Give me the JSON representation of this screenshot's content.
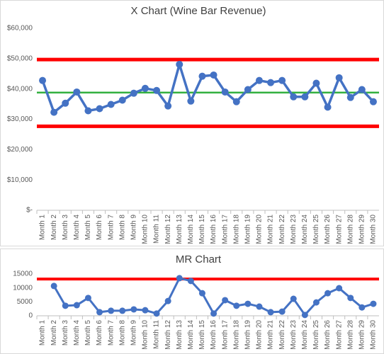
{
  "chart_data": [
    {
      "type": "line",
      "title": "X Chart (Wine Bar Revenue)",
      "categories": [
        "Month 1",
        "Month 2",
        "Month 3",
        "Month 4",
        "Month 5",
        "Month 6",
        "Month 7",
        "Month 8",
        "Month 9",
        "Month 10",
        "Month 11",
        "Month 12",
        "Month 13",
        "Month 14",
        "Month 15",
        "Month 16",
        "Month 17",
        "Month 18",
        "Month 19",
        "Month 20",
        "Month 21",
        "Month 22",
        "Month 23",
        "Month 24",
        "Month 25",
        "Month 26",
        "Month 27",
        "Month 28",
        "Month 29",
        "Month 30"
      ],
      "series": [
        {
          "color": "#4472c4",
          "values": [
            42800,
            32300,
            35300,
            39000,
            32800,
            33500,
            34900,
            36300,
            38600,
            40200,
            39500,
            34400,
            48100,
            36000,
            44200,
            44600,
            39000,
            35800,
            39800,
            42800,
            42100,
            42800,
            37400,
            37400,
            41900,
            34000,
            43700,
            37200,
            39800,
            35800
          ]
        }
      ],
      "reference_lines": [
        {
          "value": 49700,
          "color": "#ff0000"
        },
        {
          "value": 38800,
          "color": "#33b040"
        },
        {
          "value": 27700,
          "color": "#ff0000"
        }
      ],
      "ylim": [
        0,
        60000
      ],
      "yticks": [
        {
          "value": 0,
          "label": "$-"
        },
        {
          "value": 10000,
          "label": "$10,000"
        },
        {
          "value": 20000,
          "label": "$20,000"
        },
        {
          "value": 30000,
          "label": "$30,000"
        },
        {
          "value": 40000,
          "label": "$40,000"
        },
        {
          "value": 50000,
          "label": "$50,000"
        },
        {
          "value": 60000,
          "label": "$60,000"
        }
      ],
      "grid": false
    },
    {
      "type": "line",
      "title": "MR Chart",
      "categories": [
        "Month 1",
        "Month 2",
        "Month 3",
        "Month 4",
        "Month 5",
        "Month 6",
        "Month 7",
        "Month 8",
        "Month 9",
        "Month 10",
        "Month 11",
        "Month 12",
        "Month 13",
        "Month 14",
        "Month 15",
        "Month 16",
        "Month 17",
        "Month 18",
        "Month 19",
        "Month 20",
        "Month 21",
        "Month 22",
        "Month 23",
        "Month 24",
        "Month 25",
        "Month 26",
        "Month 27",
        "Month 28",
        "Month 29",
        "Month 30"
      ],
      "series": [
        {
          "color": "#4472c4",
          "values": [
            null,
            10700,
            3600,
            3800,
            6400,
            1300,
            1800,
            1800,
            2300,
            2000,
            800,
            5300,
            13500,
            12500,
            8100,
            800,
            5600,
            3600,
            4300,
            3300,
            1300,
            1500,
            6100,
            300,
            4800,
            8100,
            9900,
            6400,
            3000,
            4300
          ]
        }
      ],
      "reference_lines": [
        {
          "value": 13200,
          "color": "#ff0000"
        }
      ],
      "ylim": [
        0,
        15000
      ],
      "yticks": [
        0,
        5000,
        10000,
        15000
      ],
      "grid": false
    }
  ]
}
